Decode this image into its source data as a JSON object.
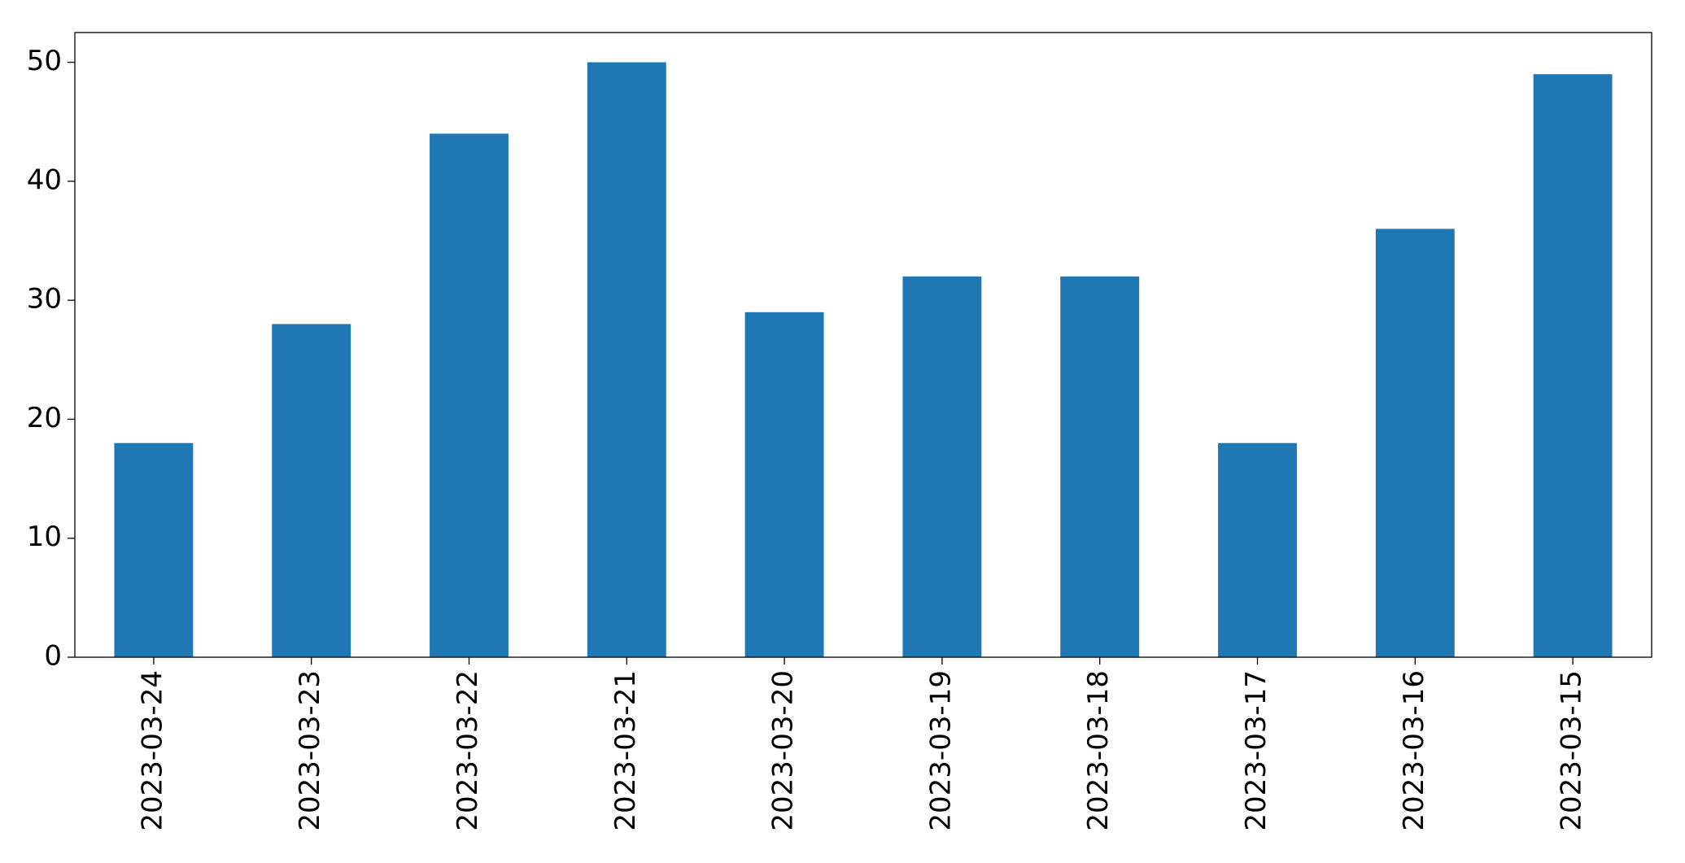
{
  "chart_data": {
    "type": "bar",
    "categories": [
      "2023-03-24",
      "2023-03-23",
      "2023-03-22",
      "2023-03-21",
      "2023-03-20",
      "2023-03-19",
      "2023-03-18",
      "2023-03-17",
      "2023-03-16",
      "2023-03-15"
    ],
    "values": [
      18,
      28,
      44,
      50,
      29,
      32,
      32,
      18,
      36,
      49
    ],
    "color": "#1f77b4",
    "ylim": [
      0,
      52.5
    ],
    "yticks": [
      0,
      10,
      20,
      30,
      40,
      50
    ],
    "grid": false
  }
}
